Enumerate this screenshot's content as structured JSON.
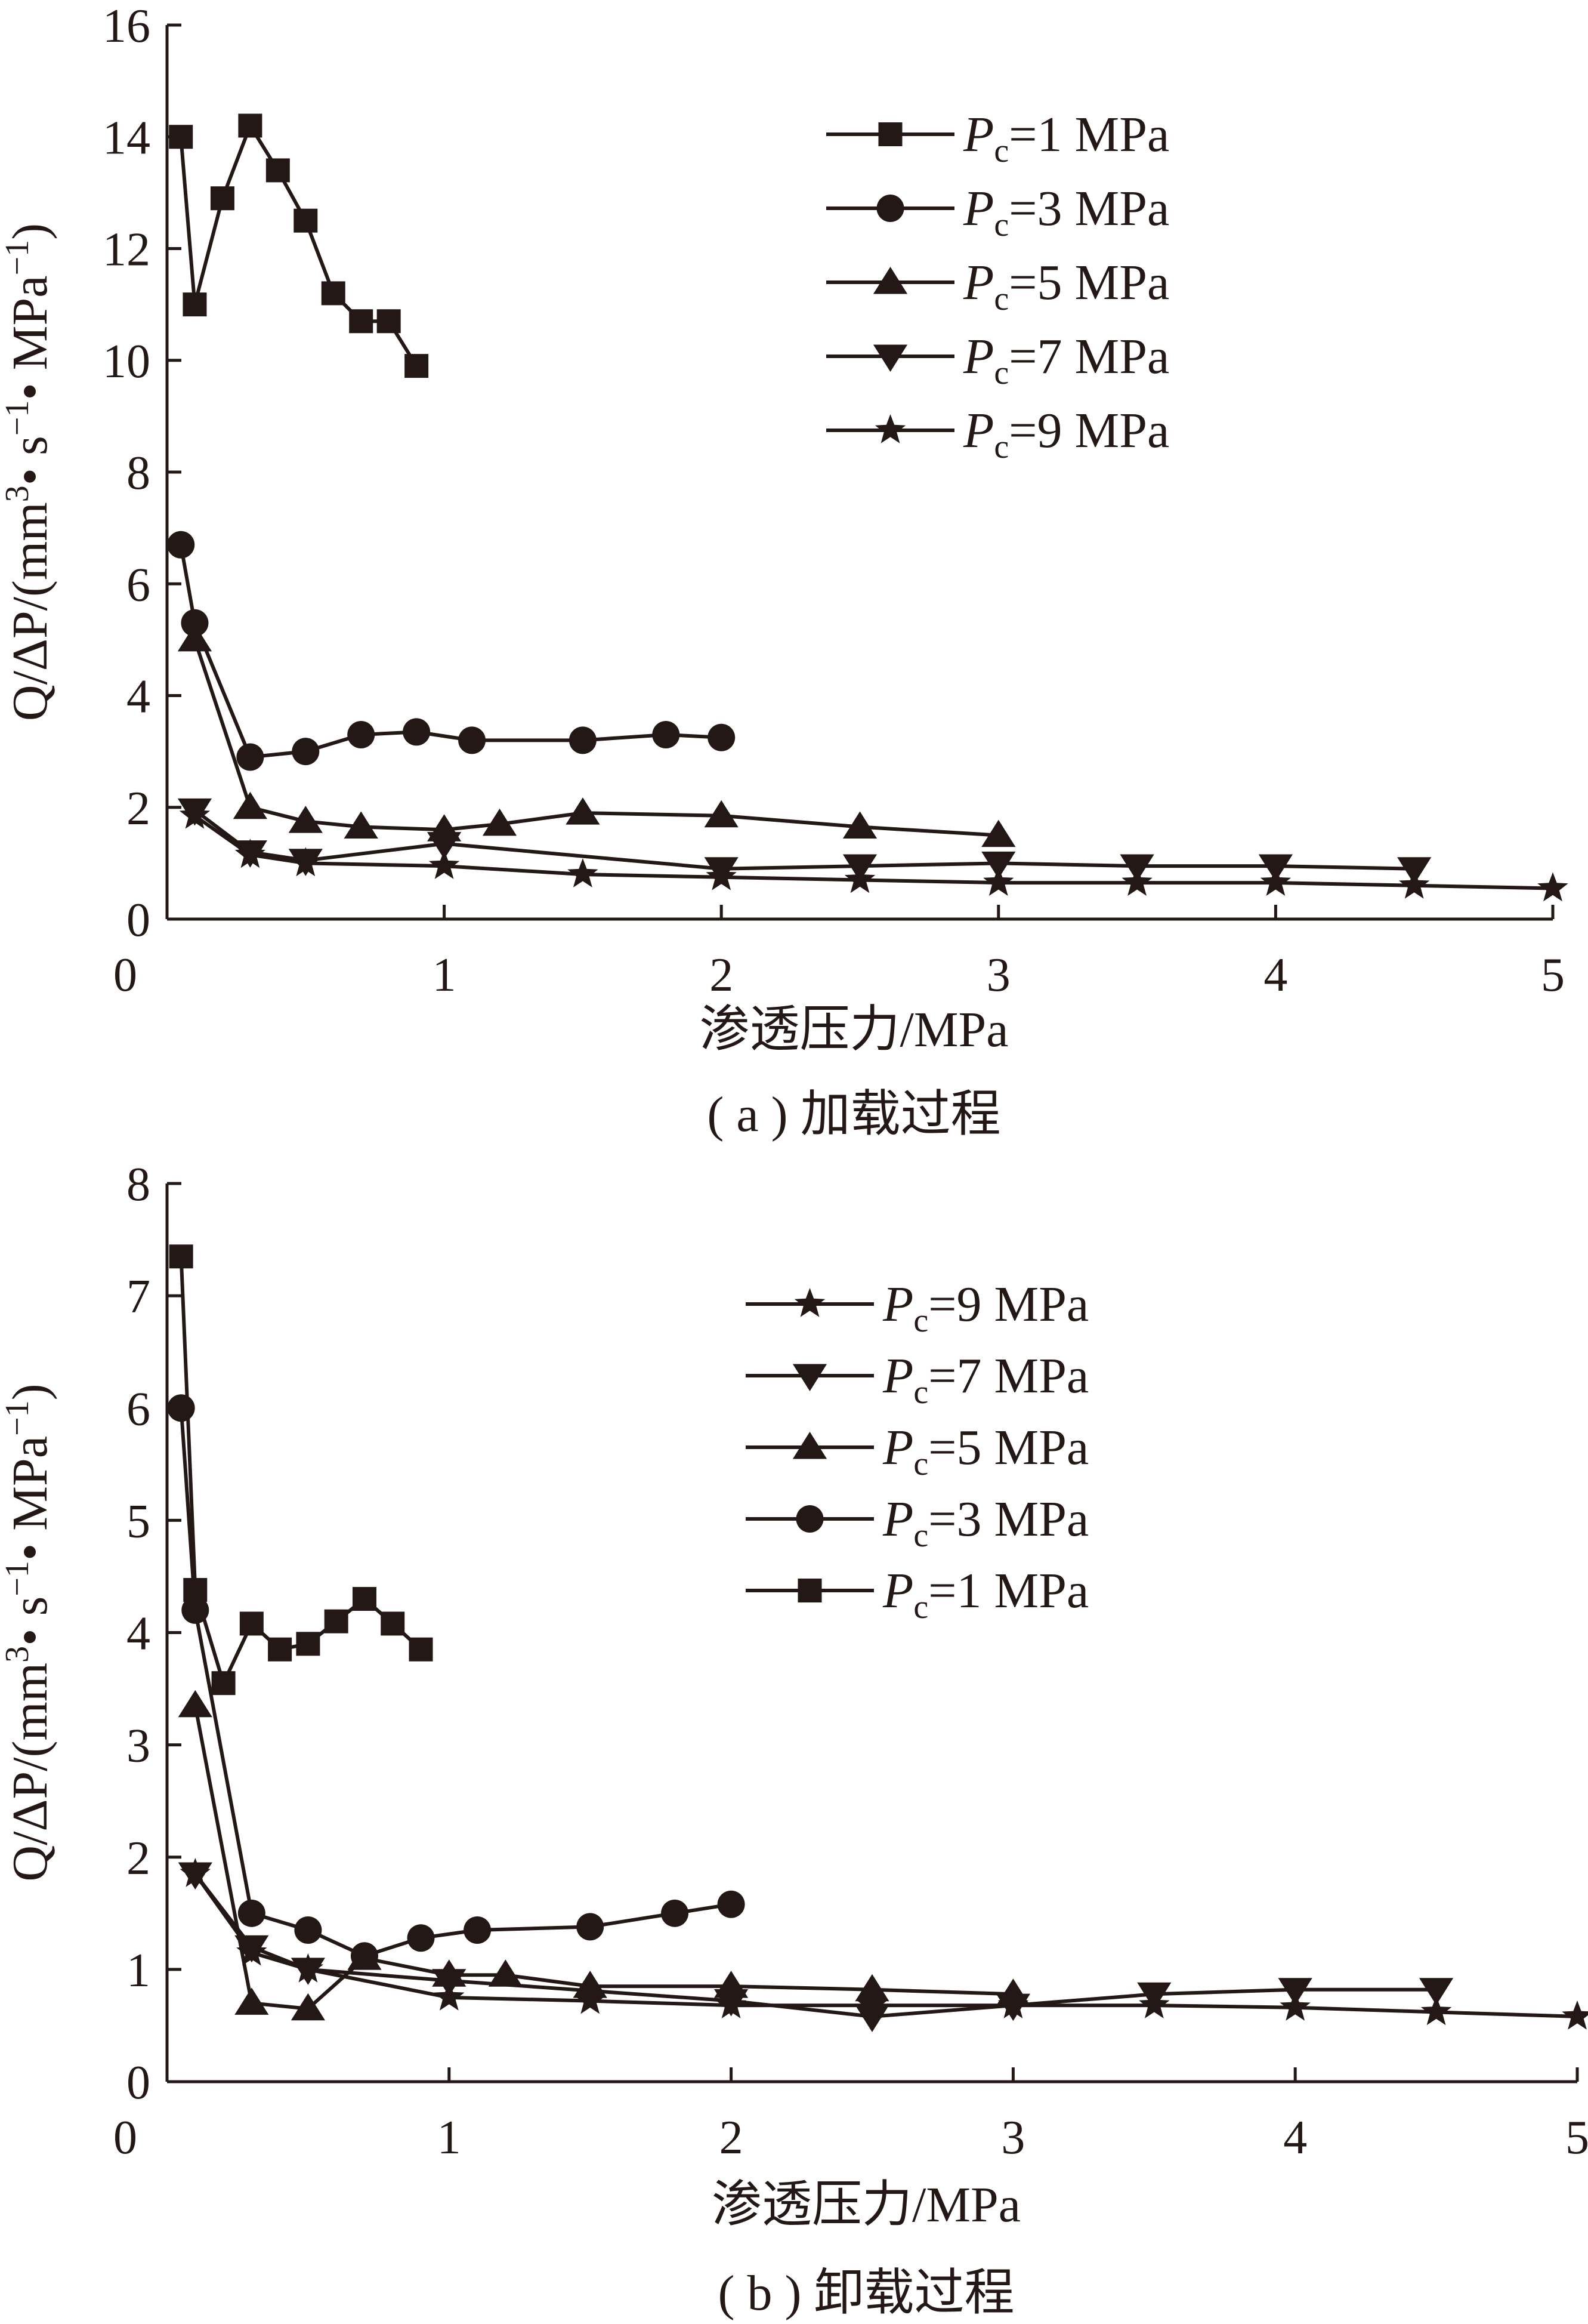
{
  "chart_data": [
    {
      "type": "line",
      "caption": "( a ) 加载过程",
      "xlabel": "渗透压力/MPa",
      "ylabel": "Q/ΔP/(mm³• s⁻¹• MPa⁻¹)",
      "xlim": [
        0,
        5
      ],
      "ylim": [
        0,
        16
      ],
      "xticks": [
        "0",
        "1",
        "2",
        "3",
        "4",
        "5"
      ],
      "yticks": [
        "0",
        "2",
        "4",
        "6",
        "8",
        "10",
        "12",
        "14",
        "16"
      ],
      "grid": false,
      "legend_position": "top-right",
      "series": [
        {
          "name": "Pc=1 MPa",
          "marker": "square",
          "x": [
            0.05,
            0.1,
            0.2,
            0.3,
            0.4,
            0.5,
            0.6,
            0.7,
            0.8,
            0.9
          ],
          "y": [
            14.0,
            11.0,
            12.9,
            14.2,
            13.4,
            12.5,
            11.2,
            10.7,
            10.7,
            9.9
          ]
        },
        {
          "name": "Pc=3 MPa",
          "marker": "circle",
          "x": [
            0.05,
            0.1,
            0.3,
            0.5,
            0.7,
            0.9,
            1.1,
            1.5,
            1.8,
            2.0
          ],
          "y": [
            6.7,
            5.3,
            2.9,
            3.0,
            3.3,
            3.35,
            3.2,
            3.2,
            3.3,
            3.25
          ]
        },
        {
          "name": "Pc=5 MPa",
          "marker": "triangle-up",
          "x": [
            0.1,
            0.3,
            0.5,
            0.7,
            1.0,
            1.2,
            1.5,
            2.0,
            2.5,
            3.0
          ],
          "y": [
            5.0,
            2.0,
            1.75,
            1.65,
            1.6,
            1.7,
            1.9,
            1.85,
            1.65,
            1.5
          ]
        },
        {
          "name": "Pc=7 MPa",
          "marker": "triangle-down",
          "x": [
            0.1,
            0.3,
            0.5,
            1.0,
            2.0,
            2.5,
            3.0,
            3.5,
            4.0,
            4.5
          ],
          "y": [
            1.95,
            1.2,
            1.05,
            1.35,
            0.9,
            0.95,
            1.0,
            0.95,
            0.95,
            0.9
          ]
        },
        {
          "name": "Pc=9 MPa",
          "marker": "star",
          "x": [
            0.1,
            0.3,
            0.5,
            1.0,
            1.5,
            2.0,
            2.5,
            3.0,
            3.5,
            4.0,
            4.5,
            5.0
          ],
          "y": [
            1.85,
            1.15,
            1.0,
            0.95,
            0.8,
            0.75,
            0.7,
            0.65,
            0.65,
            0.65,
            0.6,
            0.55
          ]
        }
      ]
    },
    {
      "type": "line",
      "caption": "( b ) 卸载过程",
      "xlabel": "渗透压力/MPa",
      "ylabel": "Q/ΔP/(mm³• s⁻¹• MPa⁻¹)",
      "xlim": [
        0,
        5
      ],
      "ylim": [
        0,
        8
      ],
      "xticks": [
        "0",
        "1",
        "2",
        "3",
        "4",
        "5"
      ],
      "yticks": [
        "0",
        "1",
        "2",
        "3",
        "4",
        "5",
        "6",
        "7",
        "8"
      ],
      "grid": false,
      "legend_position": "top-right",
      "series": [
        {
          "name": "Pc=9 MPa",
          "marker": "star",
          "x": [
            0.1,
            0.3,
            0.5,
            1.0,
            1.5,
            2.0,
            2.5,
            3.0,
            3.5,
            4.0,
            4.5,
            5.0
          ],
          "y": [
            1.85,
            1.15,
            1.0,
            0.75,
            0.72,
            0.68,
            0.68,
            0.68,
            0.68,
            0.66,
            0.62,
            0.58
          ]
        },
        {
          "name": "Pc=7 MPa",
          "marker": "triangle-down",
          "x": [
            0.1,
            0.3,
            0.5,
            1.0,
            2.0,
            2.5,
            3.0,
            3.5,
            4.0,
            4.5
          ],
          "y": [
            1.85,
            1.2,
            1.0,
            0.9,
            0.72,
            0.58,
            0.68,
            0.78,
            0.82,
            0.82
          ]
        },
        {
          "name": "Pc=5 MPa",
          "marker": "triangle-up",
          "x": [
            0.1,
            0.3,
            0.5,
            0.7,
            1.0,
            1.2,
            1.5,
            2.0,
            2.5,
            3.0
          ],
          "y": [
            3.35,
            0.7,
            0.65,
            1.1,
            0.95,
            0.95,
            0.85,
            0.85,
            0.82,
            0.78
          ]
        },
        {
          "name": "Pc=3 MPa",
          "marker": "circle",
          "x": [
            0.05,
            0.1,
            0.3,
            0.5,
            0.7,
            0.9,
            1.1,
            1.5,
            1.8,
            2.0
          ],
          "y": [
            6.0,
            4.2,
            1.5,
            1.35,
            1.12,
            1.28,
            1.35,
            1.38,
            1.5,
            1.58
          ]
        },
        {
          "name": "Pc=1 MPa",
          "marker": "square",
          "x": [
            0.05,
            0.1,
            0.2,
            0.3,
            0.4,
            0.5,
            0.6,
            0.7,
            0.8,
            0.9
          ],
          "y": [
            7.35,
            4.38,
            3.55,
            4.08,
            3.85,
            3.9,
            4.1,
            4.3,
            4.08,
            3.85
          ]
        }
      ]
    }
  ]
}
